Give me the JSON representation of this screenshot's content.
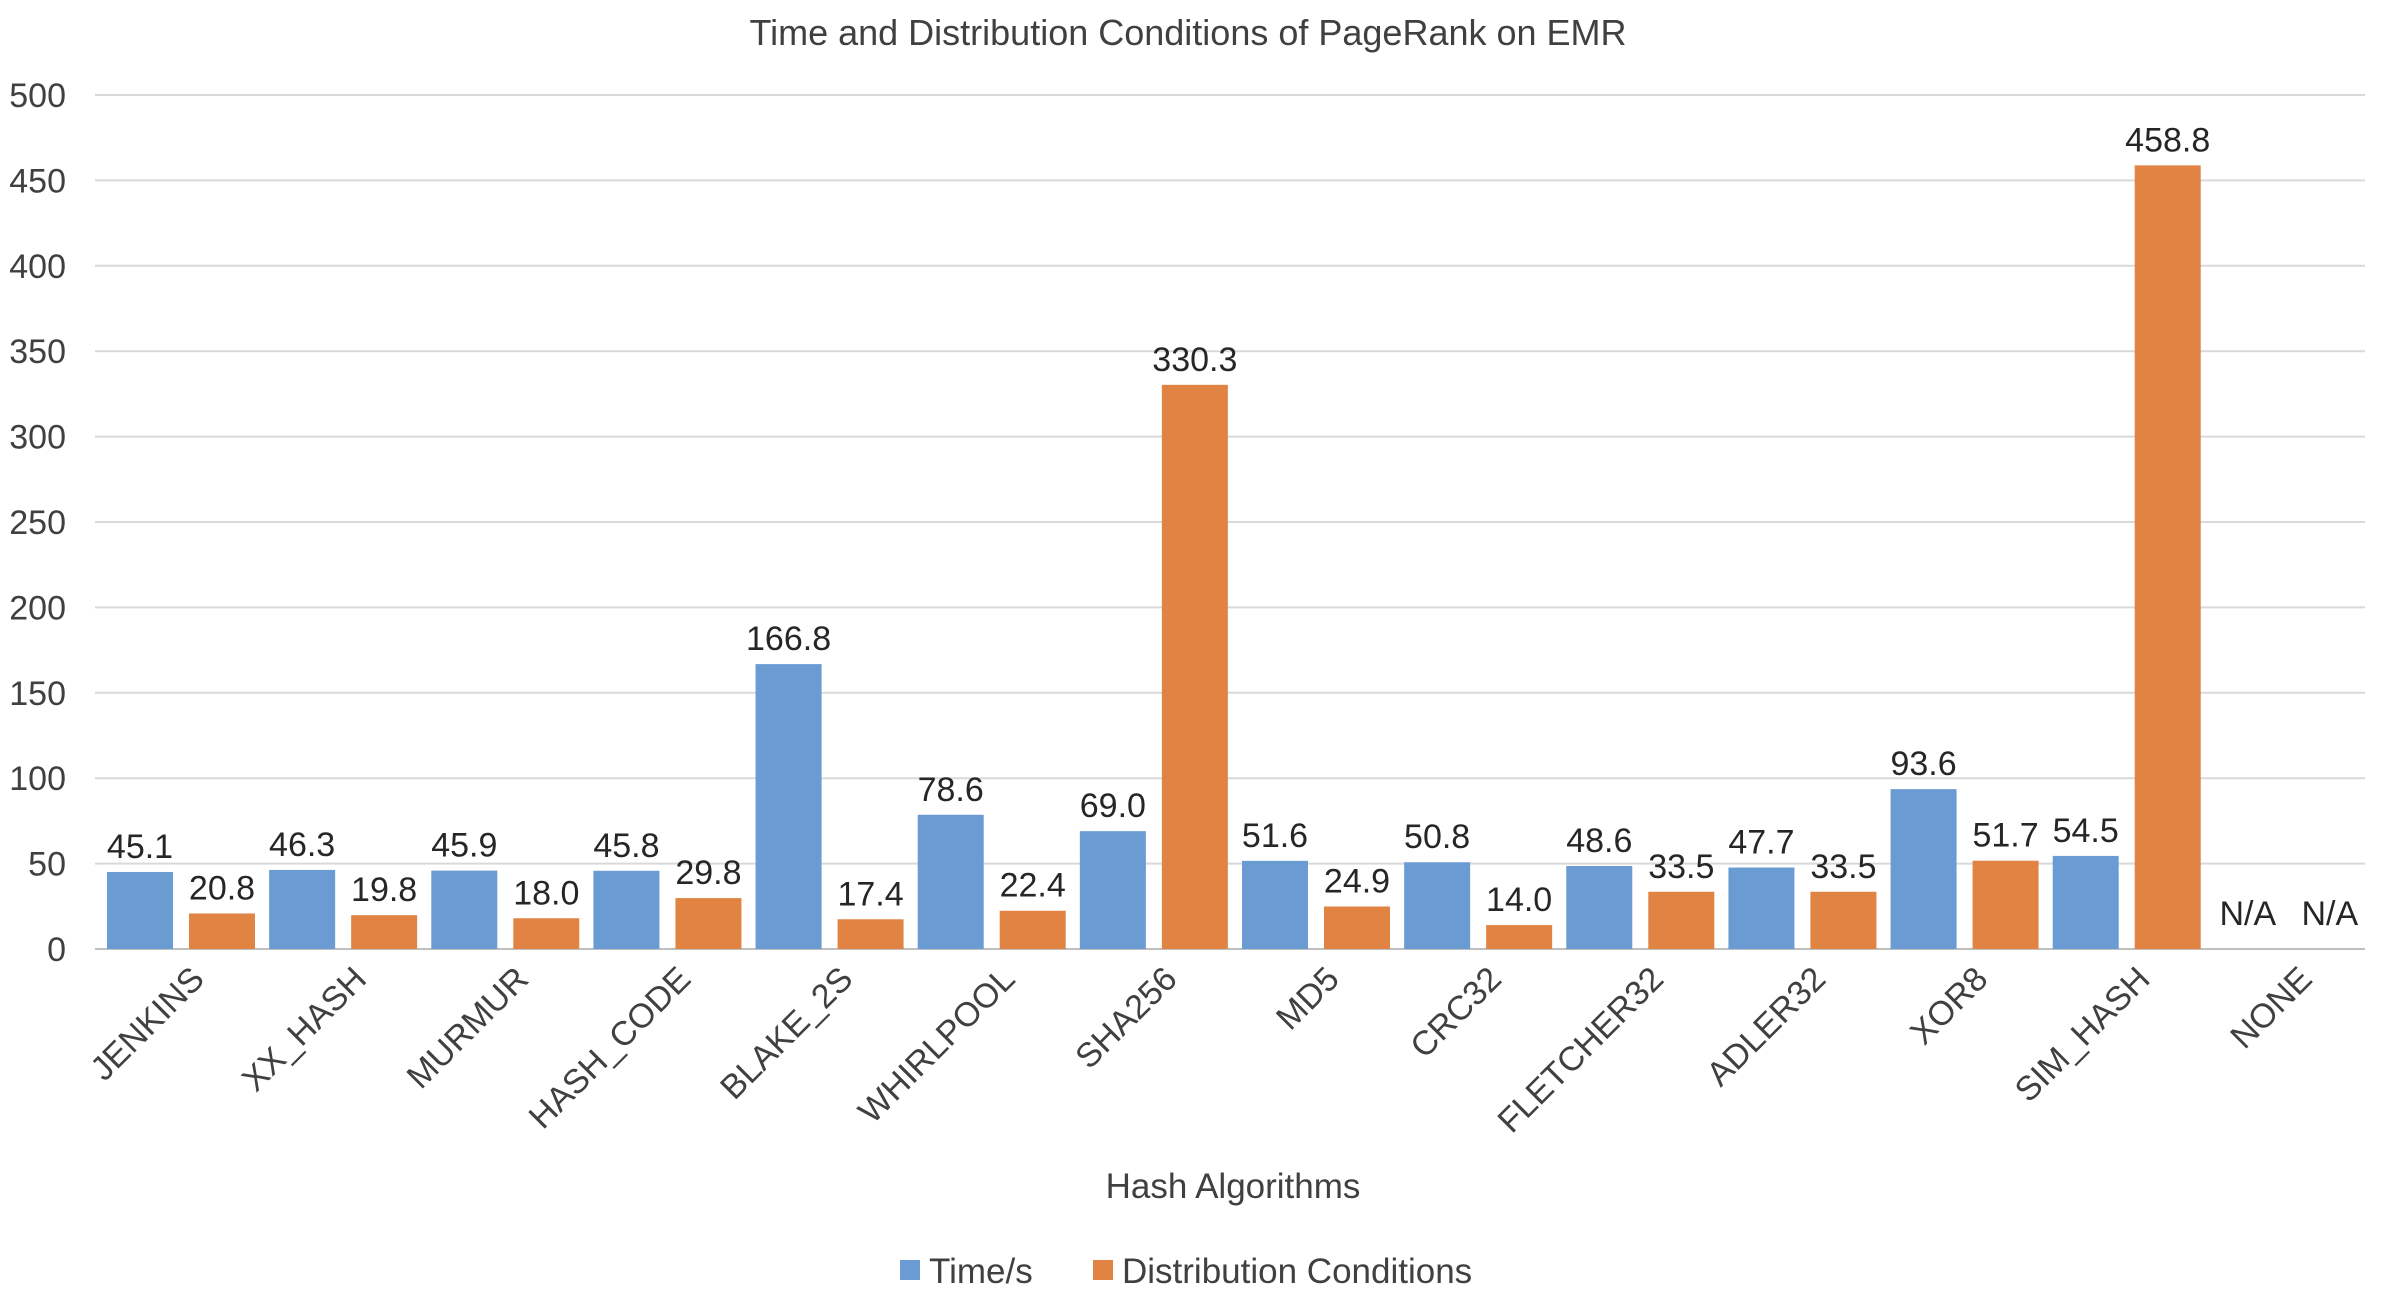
{
  "chart_data": {
    "type": "bar",
    "title": "Time and Distribution Conditions of PageRank on EMR",
    "xlabel": "Hash Algorithms",
    "ylabel": "",
    "ylim": [
      0,
      500
    ],
    "yticks": [
      0,
      50,
      100,
      150,
      200,
      250,
      300,
      350,
      400,
      450,
      500
    ],
    "grid": true,
    "legend_position": "bottom",
    "categories": [
      "JENKINS",
      "XX_HASH",
      "MURMUR",
      "HASH_CODE",
      "BLAKE_2S",
      "WHIRLPOOL",
      "SHA256",
      "MD5",
      "CRC32",
      "FLETCHER32",
      "ADLER32",
      "XOR8",
      "SIM_HASH",
      "NONE"
    ],
    "series": [
      {
        "name": "Time/s",
        "color": "#6a9bd3",
        "values": [
          45.1,
          46.3,
          45.9,
          45.8,
          166.8,
          78.6,
          69.0,
          51.6,
          50.8,
          48.6,
          47.7,
          93.6,
          54.5,
          null
        ],
        "labels": [
          "45.1",
          "46.3",
          "45.9",
          "45.8",
          "166.8",
          "78.6",
          "69.0",
          "51.6",
          "50.8",
          "48.6",
          "47.7",
          "93.6",
          "54.5",
          "N/A"
        ]
      },
      {
        "name": "Distribution Conditions",
        "color": "#e08343",
        "values": [
          20.8,
          19.8,
          18.0,
          29.8,
          17.4,
          22.4,
          330.3,
          24.9,
          14.0,
          33.5,
          33.5,
          51.7,
          458.8,
          null
        ],
        "labels": [
          "20.8",
          "19.8",
          "18.0",
          "29.8",
          "17.4",
          "22.4",
          "330.3",
          "24.9",
          "14.0",
          "33.5",
          "33.5",
          "51.7",
          "458.8",
          "N/A"
        ]
      }
    ]
  }
}
